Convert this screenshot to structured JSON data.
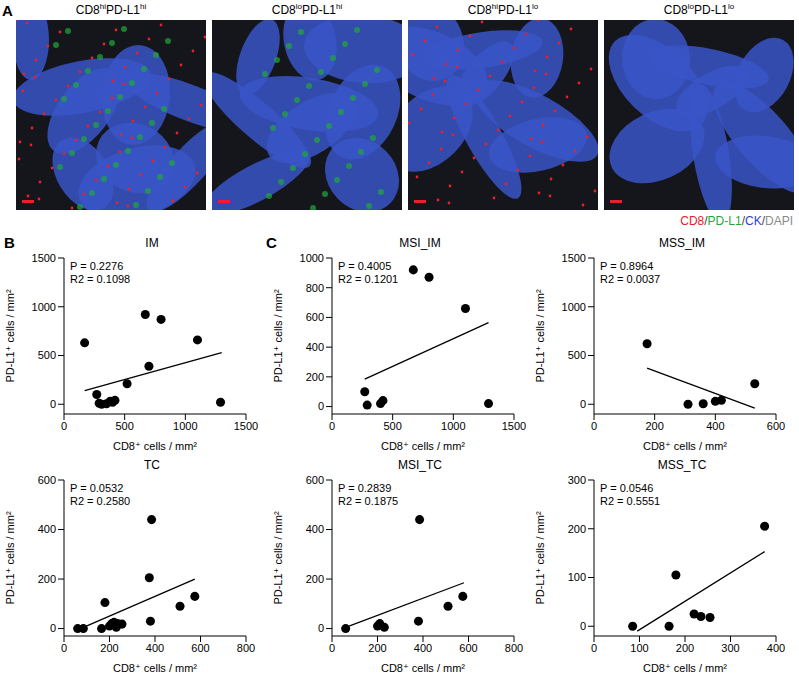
{
  "panel_letters": [
    "A",
    "B",
    "C"
  ],
  "images": {
    "titles": [
      "CD8hiPD-L1hi",
      "CD8loPD-L1hi",
      "CD8hiPD-L1lo",
      "CD8loPD-L1lo"
    ],
    "stains": [
      {
        "text": "CD8",
        "color": "#e8202a"
      },
      {
        "text": "PD-L1",
        "color": "#1fa83a"
      },
      {
        "text": "CK",
        "color": "#2d3fd6"
      },
      {
        "text": "DAPI",
        "color": "#8a8a8a"
      }
    ],
    "separator": "/"
  },
  "chart_data": [
    {
      "type": "scatter",
      "title": "IM",
      "x_label": "CD8⁺ cells / mm²",
      "y_label": "PD-L1⁺ cells / mm²",
      "annotations": [
        "P = 0.2276",
        "R2 = 0.1098"
      ],
      "color": "#000000",
      "x": [
        170,
        270,
        290,
        310,
        350,
        380,
        400,
        420,
        520,
        670,
        700,
        800,
        1100,
        1290
      ],
      "values": [
        630,
        100,
        10,
        0,
        5,
        30,
        20,
        40,
        210,
        920,
        390,
        870,
        660,
        20
      ],
      "fit": {
        "x": [
          170,
          1300
        ],
        "y": [
          140,
          530
        ]
      },
      "xlim": [
        0,
        1500
      ],
      "ylim": [
        -100,
        1500
      ],
      "xticks": [
        0,
        500,
        1000,
        1500
      ],
      "yticks": [
        0,
        500,
        1000,
        1500
      ]
    },
    {
      "type": "scatter",
      "title": "TC",
      "x_label": "CD8⁺ cells / mm²",
      "y_label": "PD-L1⁺ cells / mm²",
      "annotations": [
        "P = 0.0532",
        "R2 = 0.2580"
      ],
      "color": "#000000",
      "x": [
        60,
        85,
        165,
        180,
        200,
        210,
        220,
        230,
        235,
        255,
        375,
        380,
        385,
        510,
        575
      ],
      "values": [
        0,
        0,
        0,
        105,
        10,
        20,
        25,
        5,
        20,
        18,
        205,
        30,
        440,
        90,
        130
      ],
      "fit": {
        "x": [
          60,
          575
        ],
        "y": [
          -5,
          200
        ]
      },
      "xlim": [
        0,
        800
      ],
      "ylim": [
        -30,
        600
      ],
      "xticks": [
        0,
        200,
        400,
        600,
        800
      ],
      "yticks": [
        0,
        200,
        400,
        600
      ]
    },
    {
      "type": "scatter",
      "title": "MSI_IM",
      "x_label": "CD8⁺ cells / mm²",
      "y_label": "PD-L1⁺ cells / mm²",
      "annotations": [
        "P = 0.4005",
        "R2 = 0.1201"
      ],
      "color": "#000000",
      "x": [
        270,
        290,
        400,
        420,
        670,
        800,
        1100,
        1290
      ],
      "values": [
        100,
        10,
        20,
        40,
        920,
        870,
        660,
        20
      ],
      "fit": {
        "x": [
          270,
          1290
        ],
        "y": [
          185,
          565
        ]
      },
      "xlim": [
        0,
        1500
      ],
      "ylim": [
        -50,
        1000
      ],
      "xticks": [
        0,
        500,
        1000,
        1500
      ],
      "yticks": [
        0,
        200,
        400,
        600,
        800,
        1000
      ]
    },
    {
      "type": "scatter",
      "title": "MSS_IM",
      "x_label": "CD8⁺ cells / mm²",
      "y_label": "PD-L1⁺ cells / mm²",
      "annotations": [
        "P = 0.8964",
        "R2 = 0.0037"
      ],
      "color": "#000000",
      "x": [
        175,
        310,
        360,
        400,
        420,
        530
      ],
      "values": [
        620,
        0,
        5,
        30,
        40,
        210
      ],
      "fit": {
        "x": [
          175,
          530
        ],
        "y": [
          370,
          -40
        ]
      },
      "xlim": [
        0,
        600
      ],
      "ylim": [
        -100,
        1500
      ],
      "xticks": [
        0,
        200,
        400,
        600
      ],
      "yticks": [
        0,
        500,
        1000,
        1500
      ]
    },
    {
      "type": "scatter",
      "title": "MSI_TC",
      "x_label": "CD8⁺ cells / mm²",
      "y_label": "PD-L1⁺ cells / mm²",
      "annotations": [
        "P = 0.2839",
        "R2 = 0.1875"
      ],
      "color": "#000000",
      "x": [
        60,
        200,
        210,
        230,
        380,
        385,
        510,
        575
      ],
      "values": [
        0,
        10,
        20,
        5,
        30,
        440,
        90,
        130
      ],
      "fit": {
        "x": [
          60,
          580
        ],
        "y": [
          5,
          185
        ]
      },
      "xlim": [
        0,
        800
      ],
      "ylim": [
        -30,
        600
      ],
      "xticks": [
        0,
        200,
        400,
        600,
        800
      ],
      "yticks": [
        0,
        200,
        400,
        600
      ]
    },
    {
      "type": "scatter",
      "title": "MSS_TC",
      "x_label": "CD8⁺ cells / mm²",
      "y_label": "PD-L1⁺ cells / mm²",
      "annotations": [
        "P = 0.0546",
        "R2 = 0.5551"
      ],
      "color": "#000000",
      "x": [
        85,
        165,
        180,
        220,
        235,
        255,
        375
      ],
      "values": [
        0,
        0,
        105,
        25,
        20,
        18,
        205
      ],
      "fit": {
        "x": [
          95,
          375
        ],
        "y": [
          -10,
          153
        ]
      },
      "xlim": [
        0,
        400
      ],
      "ylim": [
        -20,
        300
      ],
      "xticks": [
        0,
        100,
        200,
        300,
        400
      ],
      "yticks": [
        0,
        100,
        200,
        300
      ]
    }
  ]
}
